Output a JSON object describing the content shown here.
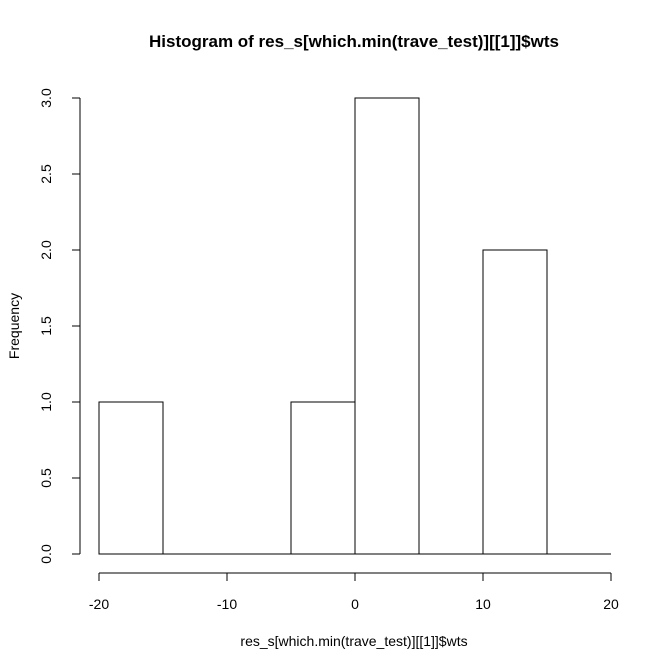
{
  "chart_data": {
    "type": "bar",
    "title": "Histogram of res_s[which.min(trave_test)][[1]]$wts",
    "xlabel": "res_s[which.min(trave_test)][[1]]$wts",
    "ylabel": "Frequency",
    "bins": [
      {
        "x0": -20,
        "x1": -15,
        "count": 1
      },
      {
        "x0": -15,
        "x1": -10,
        "count": 0
      },
      {
        "x0": -10,
        "x1": -5,
        "count": 0
      },
      {
        "x0": -5,
        "x1": 0,
        "count": 1
      },
      {
        "x0": 0,
        "x1": 5,
        "count": 3
      },
      {
        "x0": 5,
        "x1": 10,
        "count": 0
      },
      {
        "x0": 10,
        "x1": 15,
        "count": 2
      },
      {
        "x0": 15,
        "x1": 20,
        "count": 0
      }
    ],
    "xlim": [
      -20,
      20
    ],
    "ylim": [
      0,
      3
    ],
    "x_ticks": [
      -20,
      -10,
      0,
      10,
      20
    ],
    "y_ticks": [
      0.0,
      0.5,
      1.0,
      1.5,
      2.0,
      2.5,
      3.0
    ],
    "x_tick_labels": [
      "-20",
      "-10",
      "0",
      "10",
      "20"
    ],
    "y_tick_labels": [
      "0.0",
      "0.5",
      "1.0",
      "1.5",
      "2.0",
      "2.5",
      "3.0"
    ],
    "grid": false,
    "legend": "none",
    "bar_fill": "#ffffff",
    "bar_stroke": "#000000"
  }
}
